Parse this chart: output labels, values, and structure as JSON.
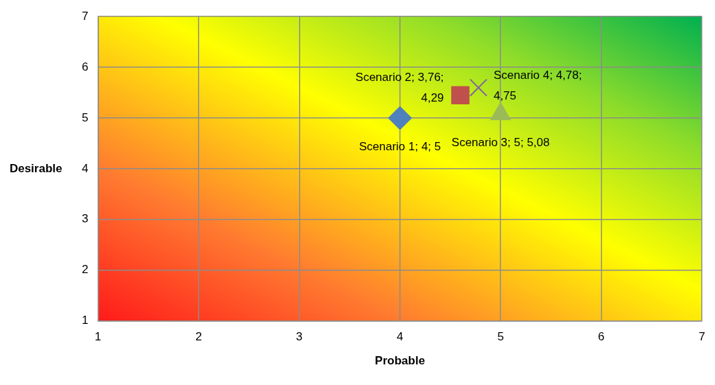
{
  "chart_data": {
    "type": "scatter",
    "xlabel": "Probable",
    "ylabel": "Desirable",
    "xlim": [
      1,
      7
    ],
    "xticks": [
      1,
      2,
      3,
      4,
      5,
      6,
      7
    ],
    "ylim": [
      1,
      7
    ],
    "yticks": [
      1,
      2,
      3,
      4,
      5,
      6,
      7
    ],
    "grid": true,
    "series": [
      {
        "color": "#4f81bd",
        "marker": "diamond",
        "x": [
          4
        ],
        "values": [
          5
        ]
      },
      {
        "color": "#c0504d",
        "marker": "square",
        "x": [
          4.6
        ],
        "values": [
          5.45
        ]
      },
      {
        "color": "#9bbb59",
        "marker": "triangle",
        "x": [
          5
        ],
        "values": [
          5.08
        ]
      },
      {
        "color": "#8064a2",
        "marker": "cross",
        "x": [
          4.78
        ],
        "values": [
          5.6
        ]
      }
    ],
    "annotations": [
      {
        "text": "Scenario 1; 4; 5",
        "x": 4,
        "y": 5
      },
      {
        "text": "Scenario 2; 3,76; 4,29",
        "x": 4.6,
        "y": 5.45
      },
      {
        "text": "Scenario 3; 5; 5,08",
        "x": 5,
        "y": 5.08
      },
      {
        "text": "Scenario 4; 4,78; 4,75",
        "x": 4.78,
        "y": 5.6
      }
    ]
  }
}
